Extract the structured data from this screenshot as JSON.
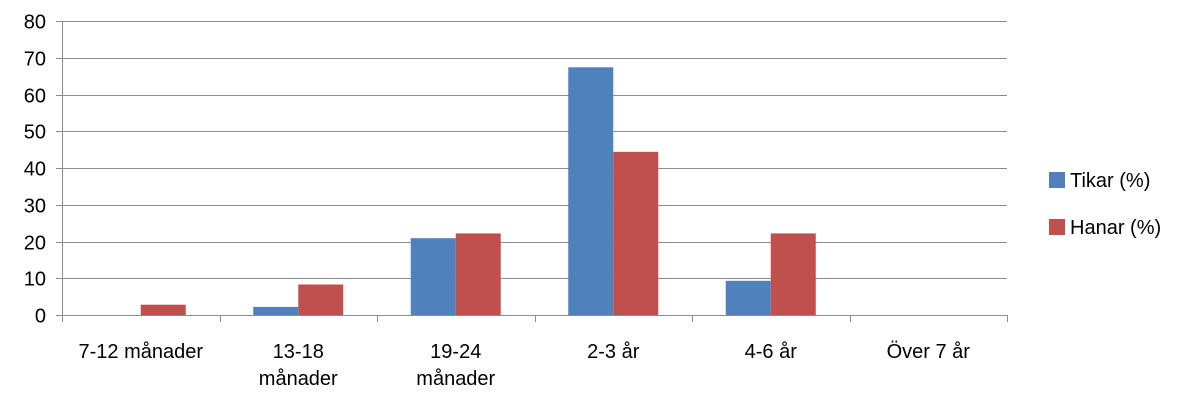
{
  "chart_data": {
    "type": "bar",
    "title": "",
    "xlabel": "",
    "ylabel": "",
    "categories": [
      [
        "7-12 månader"
      ],
      [
        "13-18",
        "månader"
      ],
      [
        "19-24",
        "månader"
      ],
      [
        "2-3 år"
      ],
      [
        "4-6 år"
      ],
      [
        "Över 7 år"
      ]
    ],
    "series": [
      {
        "name": "Tikar (%)",
        "color": "#4f81bd",
        "values": [
          0,
          2.2,
          20.9,
          67.4,
          9.3,
          0
        ]
      },
      {
        "name": "Hanar (%)",
        "color": "#c0504d",
        "values": [
          2.8,
          8.3,
          22.2,
          44.4,
          22.2,
          0
        ]
      }
    ],
    "ylim": [
      0,
      80
    ],
    "yticks": [
      0,
      10,
      20,
      30,
      40,
      50,
      60,
      70,
      80
    ],
    "grid": true,
    "legend": "right"
  }
}
